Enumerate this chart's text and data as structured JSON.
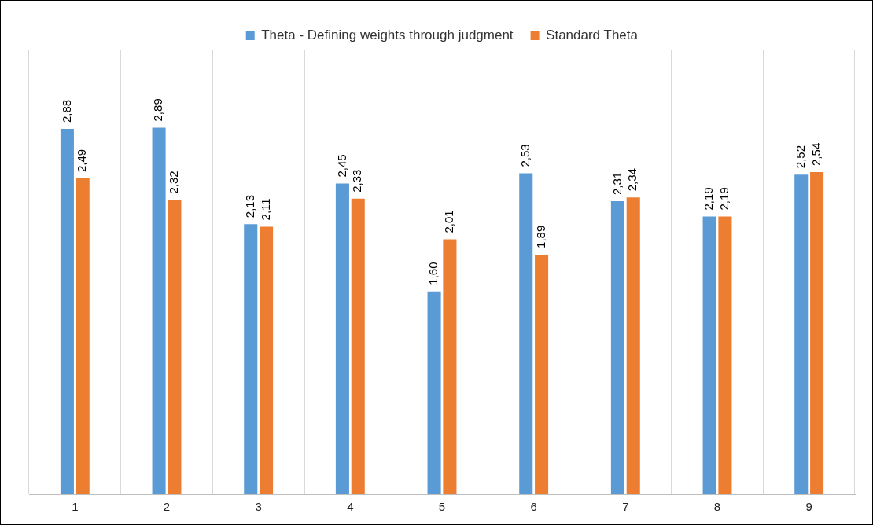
{
  "chart_data": {
    "type": "bar",
    "categories": [
      "1",
      "2",
      "3",
      "4",
      "5",
      "6",
      "7",
      "8",
      "9"
    ],
    "series": [
      {
        "name": "Theta - Defining weights through judgment",
        "color": "#5b9bd5",
        "values": [
          2.88,
          2.89,
          2.13,
          2.45,
          1.6,
          2.53,
          2.31,
          2.19,
          2.52
        ],
        "value_labels": [
          "2,88",
          "2,89",
          "2,13",
          "2,45",
          "1,60",
          "2,53",
          "2,31",
          "2,19",
          "2,52"
        ]
      },
      {
        "name": "Standard Theta",
        "color": "#ed7d31",
        "values": [
          2.49,
          2.32,
          2.11,
          2.33,
          2.01,
          1.89,
          2.34,
          2.19,
          2.54
        ],
        "value_labels": [
          "2,49",
          "2,32",
          "2,11",
          "2,33",
          "2,01",
          "1,89",
          "2,34",
          "2,19",
          "2,54"
        ]
      }
    ],
    "ylim": [
      0,
      3.5
    ],
    "tick_labels": "x",
    "grid": "x",
    "legend": "top"
  }
}
